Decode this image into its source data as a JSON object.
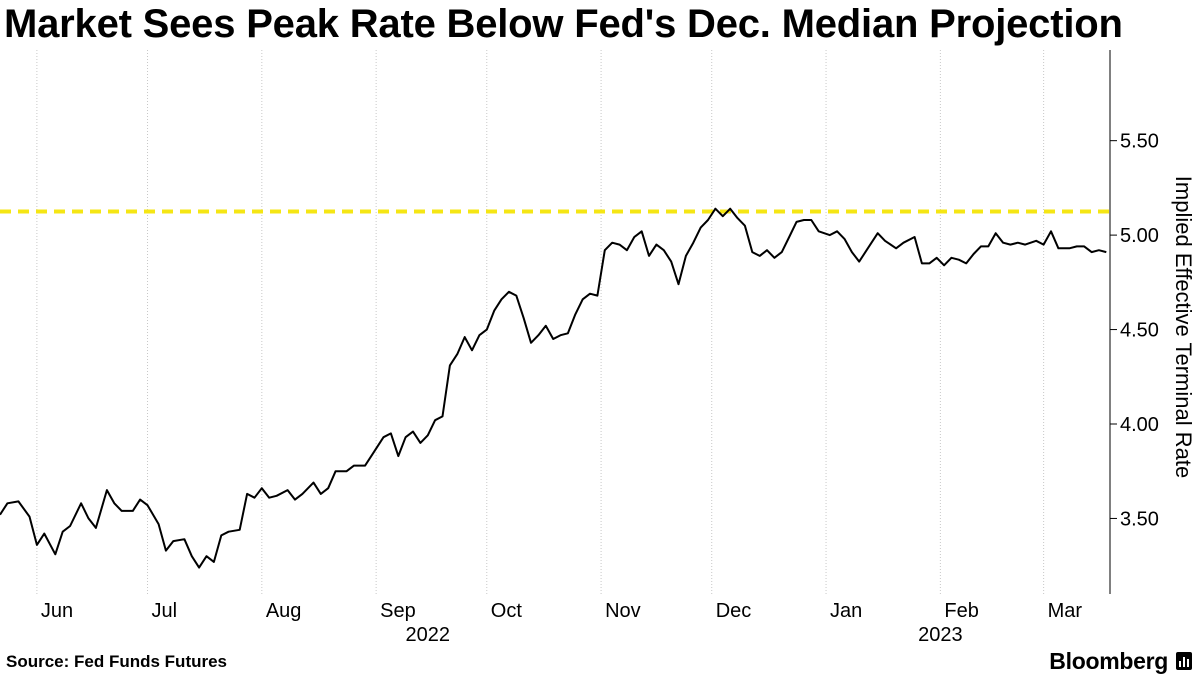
{
  "title": "Market Sees Peak Rate Below Fed's Dec. Median Projection",
  "source": "Source: Fed Funds Futures",
  "brand": "Bloomberg",
  "brand_icon": "bloomberg-chart-icon",
  "colors": {
    "line": "#000000",
    "reference": "#f5e614",
    "grid": "#c8c8c8"
  },
  "chart_data": {
    "type": "line",
    "title": "Market Sees Peak Rate Below Fed's Dec. Median Projection",
    "ylabel": "Implied Effective Terminal Rate",
    "ylim": [
      3.1,
      5.98
    ],
    "yticks": [
      3.5,
      4.0,
      4.5,
      5.0,
      5.5
    ],
    "ytick_labels": [
      "3.50",
      "4.00",
      "4.50",
      "5.00",
      "5.50"
    ],
    "y_axis_position": "right",
    "grid": "vertical dotted",
    "x_range": [
      "2022-05-22",
      "2023-03-19"
    ],
    "month_labels": [
      {
        "date": "2022-06-01",
        "label": "Jun"
      },
      {
        "date": "2022-07-01",
        "label": "Jul"
      },
      {
        "date": "2022-08-01",
        "label": "Aug"
      },
      {
        "date": "2022-09-01",
        "label": "Sep"
      },
      {
        "date": "2022-10-01",
        "label": "Oct"
      },
      {
        "date": "2022-11-01",
        "label": "Nov"
      },
      {
        "date": "2022-12-01",
        "label": "Dec"
      },
      {
        "date": "2023-01-01",
        "label": "Jan"
      },
      {
        "date": "2023-02-01",
        "label": "Feb"
      },
      {
        "date": "2023-03-01",
        "label": "Mar"
      }
    ],
    "year_labels": [
      {
        "date": "2022-09-15",
        "label": "2022"
      },
      {
        "date": "2023-02-01",
        "label": "2023"
      }
    ],
    "reference_lines": [
      {
        "name": "Fed's Dec. median projection",
        "y": 5.125,
        "style": "dashed",
        "color": "#f5e614"
      }
    ],
    "series": [
      {
        "values": [
          [
            "2022-05-22",
            3.52
          ],
          [
            "2022-05-24",
            3.58
          ],
          [
            "2022-05-27",
            3.59
          ],
          [
            "2022-05-30",
            3.51
          ],
          [
            "2022-06-01",
            3.36
          ],
          [
            "2022-06-03",
            3.42
          ],
          [
            "2022-06-06",
            3.31
          ],
          [
            "2022-06-08",
            3.43
          ],
          [
            "2022-06-10",
            3.46
          ],
          [
            "2022-06-13",
            3.58
          ],
          [
            "2022-06-15",
            3.5
          ],
          [
            "2022-06-17",
            3.45
          ],
          [
            "2022-06-20",
            3.65
          ],
          [
            "2022-06-22",
            3.58
          ],
          [
            "2022-06-24",
            3.54
          ],
          [
            "2022-06-27",
            3.54
          ],
          [
            "2022-06-29",
            3.6
          ],
          [
            "2022-07-01",
            3.57
          ],
          [
            "2022-07-04",
            3.47
          ],
          [
            "2022-07-06",
            3.33
          ],
          [
            "2022-07-08",
            3.38
          ],
          [
            "2022-07-11",
            3.39
          ],
          [
            "2022-07-13",
            3.3
          ],
          [
            "2022-07-15",
            3.24
          ],
          [
            "2022-07-17",
            3.3
          ],
          [
            "2022-07-19",
            3.27
          ],
          [
            "2022-07-21",
            3.41
          ],
          [
            "2022-07-23",
            3.43
          ],
          [
            "2022-07-26",
            3.44
          ],
          [
            "2022-07-28",
            3.63
          ],
          [
            "2022-07-30",
            3.61
          ],
          [
            "2022-08-01",
            3.66
          ],
          [
            "2022-08-03",
            3.61
          ],
          [
            "2022-08-05",
            3.62
          ],
          [
            "2022-08-08",
            3.65
          ],
          [
            "2022-08-10",
            3.6
          ],
          [
            "2022-08-12",
            3.63
          ],
          [
            "2022-08-15",
            3.69
          ],
          [
            "2022-08-17",
            3.63
          ],
          [
            "2022-08-19",
            3.66
          ],
          [
            "2022-08-21",
            3.75
          ],
          [
            "2022-08-24",
            3.75
          ],
          [
            "2022-08-26",
            3.78
          ],
          [
            "2022-08-29",
            3.78
          ],
          [
            "2022-08-31",
            3.84
          ],
          [
            "2022-09-03",
            3.93
          ],
          [
            "2022-09-05",
            3.95
          ],
          [
            "2022-09-07",
            3.83
          ],
          [
            "2022-09-09",
            3.93
          ],
          [
            "2022-09-11",
            3.96
          ],
          [
            "2022-09-13",
            3.9
          ],
          [
            "2022-09-15",
            3.94
          ],
          [
            "2022-09-17",
            4.02
          ],
          [
            "2022-09-19",
            4.04
          ],
          [
            "2022-09-21",
            4.31
          ],
          [
            "2022-09-23",
            4.37
          ],
          [
            "2022-09-25",
            4.46
          ],
          [
            "2022-09-27",
            4.39
          ],
          [
            "2022-09-29",
            4.47
          ],
          [
            "2022-10-01",
            4.5
          ],
          [
            "2022-10-03",
            4.6
          ],
          [
            "2022-10-05",
            4.66
          ],
          [
            "2022-10-07",
            4.7
          ],
          [
            "2022-10-09",
            4.68
          ],
          [
            "2022-10-11",
            4.56
          ],
          [
            "2022-10-13",
            4.43
          ],
          [
            "2022-10-15",
            4.47
          ],
          [
            "2022-10-17",
            4.52
          ],
          [
            "2022-10-19",
            4.45
          ],
          [
            "2022-10-21",
            4.47
          ],
          [
            "2022-10-23",
            4.48
          ],
          [
            "2022-10-25",
            4.58
          ],
          [
            "2022-10-27",
            4.66
          ],
          [
            "2022-10-29",
            4.69
          ],
          [
            "2022-10-31",
            4.68
          ],
          [
            "2022-11-02",
            4.92
          ],
          [
            "2022-11-04",
            4.96
          ],
          [
            "2022-11-06",
            4.95
          ],
          [
            "2022-11-08",
            4.92
          ],
          [
            "2022-11-10",
            4.99
          ],
          [
            "2022-11-12",
            5.02
          ],
          [
            "2022-11-14",
            4.89
          ],
          [
            "2022-11-16",
            4.95
          ],
          [
            "2022-11-18",
            4.92
          ],
          [
            "2022-11-20",
            4.86
          ],
          [
            "2022-11-22",
            4.74
          ],
          [
            "2022-11-24",
            4.89
          ],
          [
            "2022-11-26",
            4.96
          ],
          [
            "2022-11-28",
            5.04
          ],
          [
            "2022-11-30",
            5.08
          ],
          [
            "2022-12-02",
            5.14
          ],
          [
            "2022-12-04",
            5.1
          ],
          [
            "2022-12-06",
            5.14
          ],
          [
            "2022-12-08",
            5.09
          ],
          [
            "2022-12-10",
            5.05
          ],
          [
            "2022-12-12",
            4.91
          ],
          [
            "2022-12-14",
            4.89
          ],
          [
            "2022-12-16",
            4.92
          ],
          [
            "2022-12-18",
            4.88
          ],
          [
            "2022-12-20",
            4.91
          ],
          [
            "2022-12-22",
            4.99
          ],
          [
            "2022-12-24",
            5.07
          ],
          [
            "2022-12-26",
            5.08
          ],
          [
            "2022-12-28",
            5.08
          ],
          [
            "2022-12-30",
            5.02
          ],
          [
            "2023-01-02",
            5.0
          ],
          [
            "2023-01-04",
            5.02
          ],
          [
            "2023-01-06",
            4.98
          ],
          [
            "2023-01-08",
            4.91
          ],
          [
            "2023-01-10",
            4.86
          ],
          [
            "2023-01-12",
            4.92
          ],
          [
            "2023-01-15",
            5.01
          ],
          [
            "2023-01-17",
            4.97
          ],
          [
            "2023-01-20",
            4.93
          ],
          [
            "2023-01-22",
            4.96
          ],
          [
            "2023-01-25",
            4.99
          ],
          [
            "2023-01-27",
            4.85
          ],
          [
            "2023-01-29",
            4.85
          ],
          [
            "2023-01-31",
            4.88
          ],
          [
            "2023-02-02",
            4.84
          ],
          [
            "2023-02-04",
            4.88
          ],
          [
            "2023-02-06",
            4.87
          ],
          [
            "2023-02-08",
            4.85
          ],
          [
            "2023-02-10",
            4.9
          ],
          [
            "2023-02-12",
            4.94
          ],
          [
            "2023-02-14",
            4.94
          ],
          [
            "2023-02-16",
            5.01
          ],
          [
            "2023-02-18",
            4.96
          ],
          [
            "2023-02-20",
            4.95
          ],
          [
            "2023-02-22",
            4.96
          ],
          [
            "2023-02-24",
            4.95
          ],
          [
            "2023-02-27",
            4.97
          ],
          [
            "2023-03-01",
            4.95
          ],
          [
            "2023-03-03",
            5.02
          ],
          [
            "2023-03-05",
            4.93
          ],
          [
            "2023-03-08",
            4.93
          ],
          [
            "2023-03-10",
            4.94
          ],
          [
            "2023-03-12",
            4.94
          ],
          [
            "2023-03-14",
            4.91
          ],
          [
            "2023-03-16",
            4.92
          ],
          [
            "2023-03-18",
            4.91
          ]
        ]
      }
    ]
  }
}
